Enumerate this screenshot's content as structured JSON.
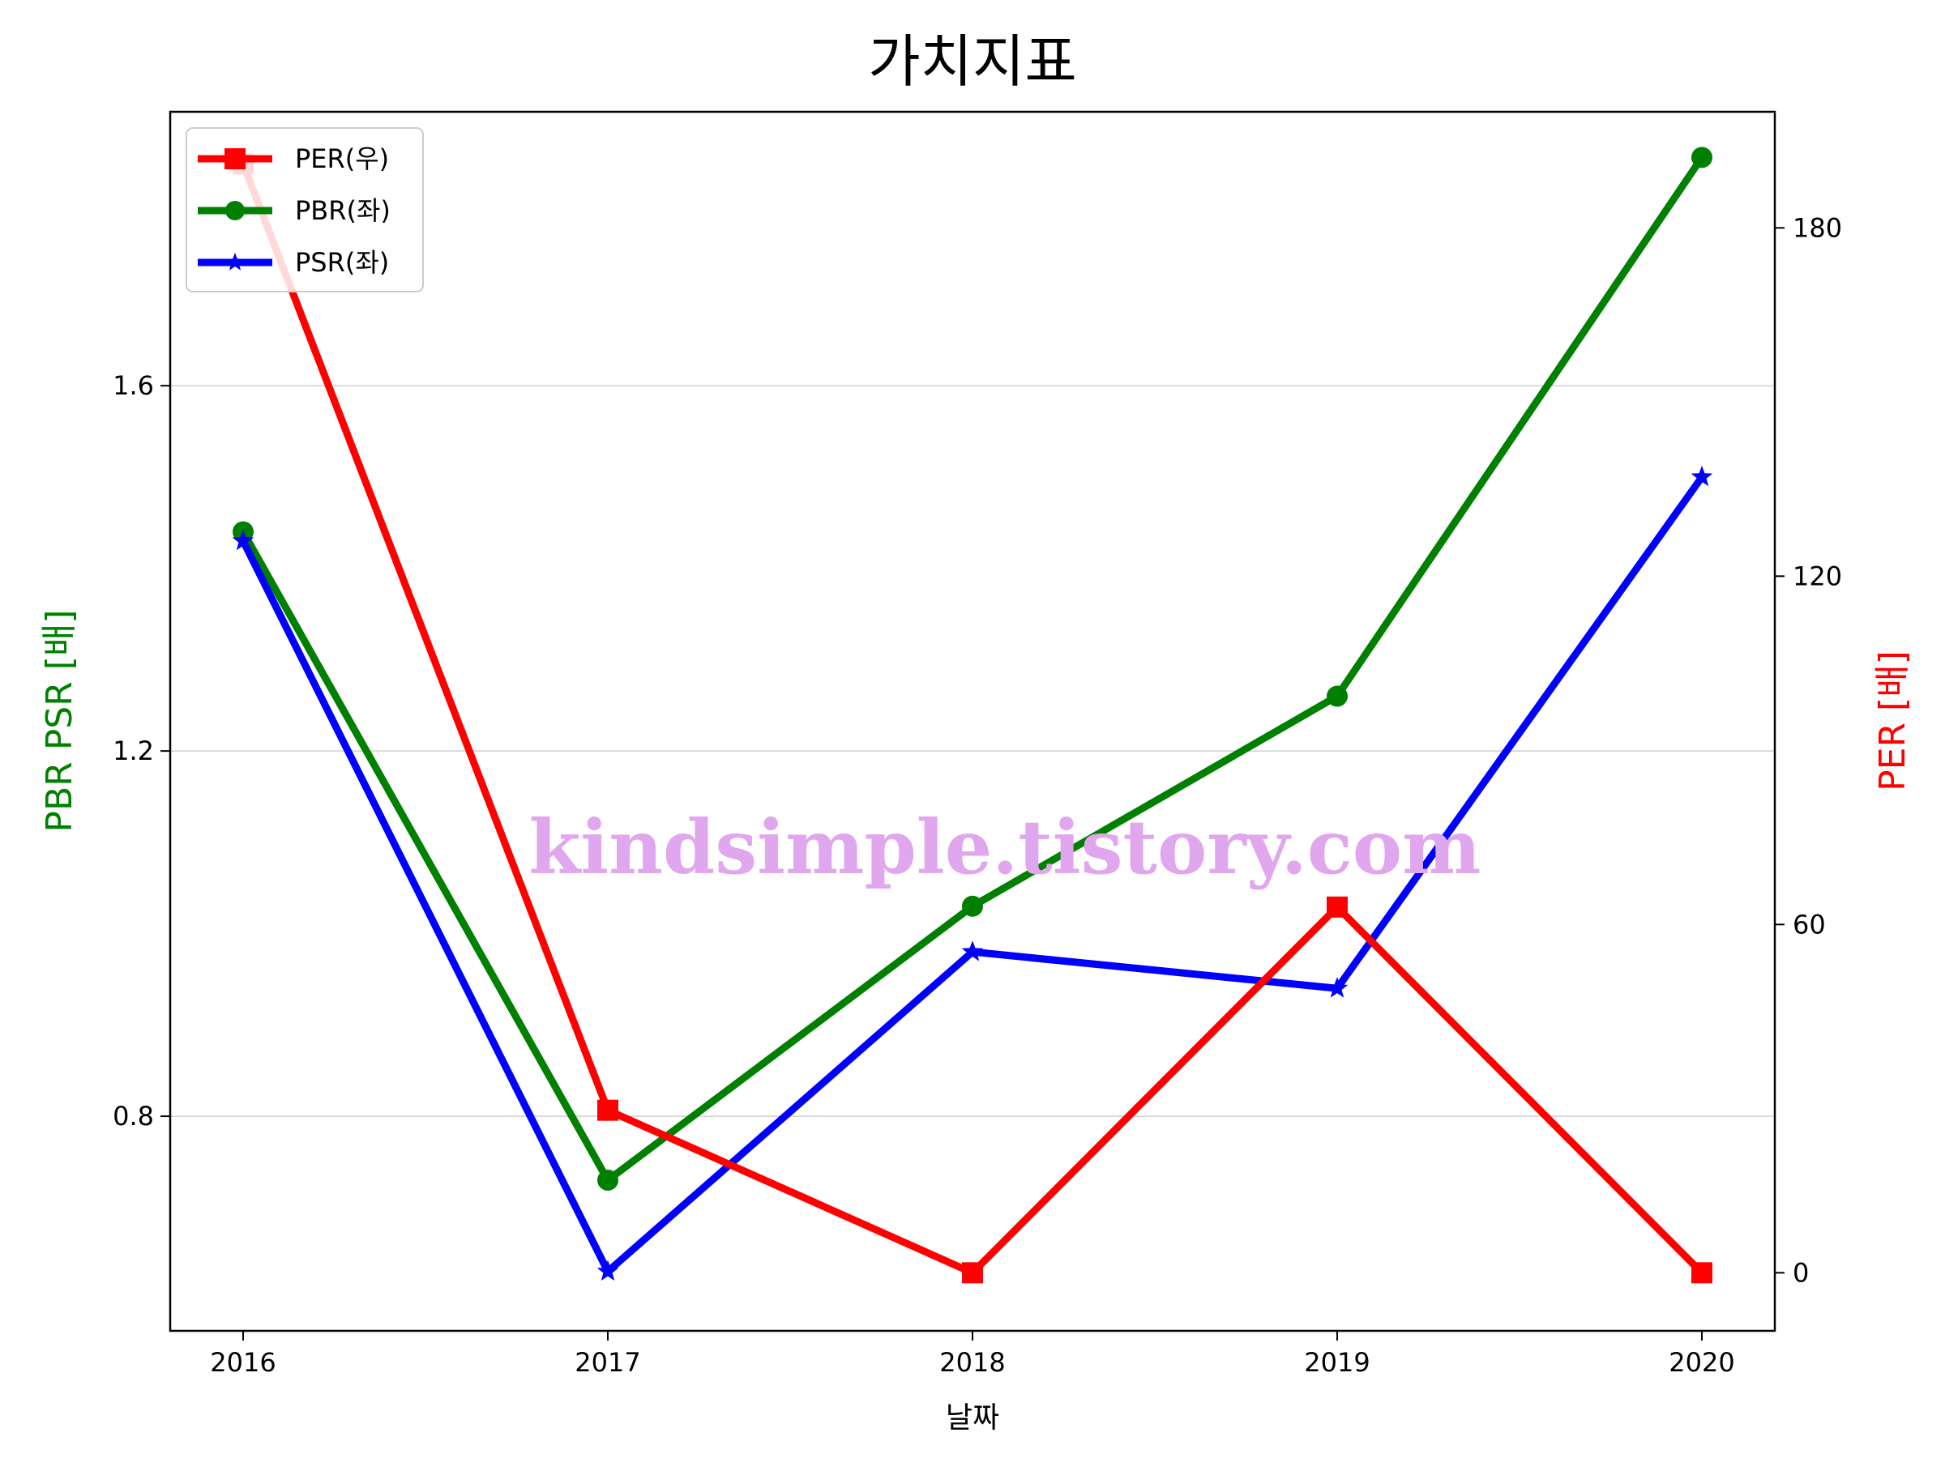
{
  "chart_data": {
    "type": "line",
    "title": "가치지표",
    "xlabel": "날짜",
    "ylabel_left": "PBR PSR [배]",
    "ylabel_right": "PER [배]",
    "categories": [
      "2016",
      "2017",
      "2018",
      "2019",
      "2020"
    ],
    "xlim": [
      2015.8,
      2020.2
    ],
    "ylim_left": [
      0.565,
      1.9
    ],
    "ylim_right": [
      -10,
      200
    ],
    "yticks_left": [
      "0.8",
      "1.2",
      "1.6"
    ],
    "yticks_right": [
      "0",
      "60",
      "120",
      "180"
    ],
    "grid": "horizontal (left axis)",
    "legend_position": "top-left",
    "series": [
      {
        "name": "PER(우)",
        "axis": "right",
        "color": "#ff0000",
        "marker": "square",
        "values": [
          191,
          28,
          0,
          63,
          0
        ]
      },
      {
        "name": "PBR(좌)",
        "axis": "left",
        "color": "#008000",
        "marker": "circle",
        "values": [
          1.44,
          0.73,
          1.03,
          1.26,
          1.85
        ]
      },
      {
        "name": "PSR(좌)",
        "axis": "left",
        "color": "#0000ff",
        "marker": "star",
        "values": [
          1.43,
          0.63,
          0.98,
          0.94,
          1.5
        ]
      }
    ],
    "watermark": "kindsimple.tistory.com"
  }
}
